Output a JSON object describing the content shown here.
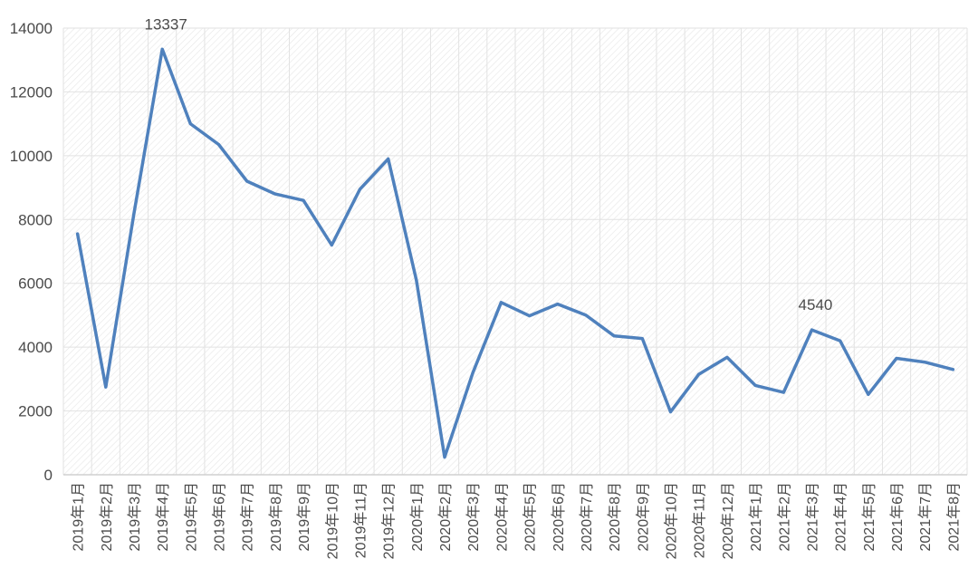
{
  "chart_data": {
    "type": "line",
    "title": "",
    "xlabel": "",
    "ylabel": "",
    "ylim": [
      0,
      14000
    ],
    "yticks": [
      0,
      2000,
      4000,
      6000,
      8000,
      10000,
      12000,
      14000
    ],
    "grid": true,
    "legend": "none",
    "colors": {
      "line": "#4f81bd",
      "grid": "#e2e2e2",
      "hatch": "#ececec",
      "axis": "#d0d0d0"
    },
    "categories": [
      "2019年1月",
      "2019年2月",
      "2019年3月",
      "2019年4月",
      "2019年5月",
      "2019年6月",
      "2019年7月",
      "2019年8月",
      "2019年9月",
      "2019年10月",
      "2019年11月",
      "2019年12月",
      "2020年1月",
      "2020年2月",
      "2020年3月",
      "2020年4月",
      "2020年5月",
      "2020年6月",
      "2020年7月",
      "2020年8月",
      "2020年9月",
      "2020年10月",
      "2020年11月",
      "2020年12月",
      "2021年1月",
      "2021年2月",
      "2021年3月",
      "2021年4月",
      "2021年5月",
      "2021年6月",
      "2021年7月",
      "2021年8月"
    ],
    "series": [
      {
        "values": [
          7550,
          2750,
          8200,
          13337,
          11000,
          10350,
          9200,
          8800,
          8600,
          7200,
          8950,
          9900,
          6100,
          550,
          3200,
          5400,
          4980,
          5350,
          5000,
          4350,
          4270,
          1970,
          3150,
          3680,
          2800,
          2580,
          4540,
          4200,
          2520,
          3650,
          3530,
          3300
        ]
      }
    ],
    "data_labels": [
      {
        "index": 3,
        "text": "13337"
      },
      {
        "index": 26,
        "text": "4540"
      }
    ]
  }
}
